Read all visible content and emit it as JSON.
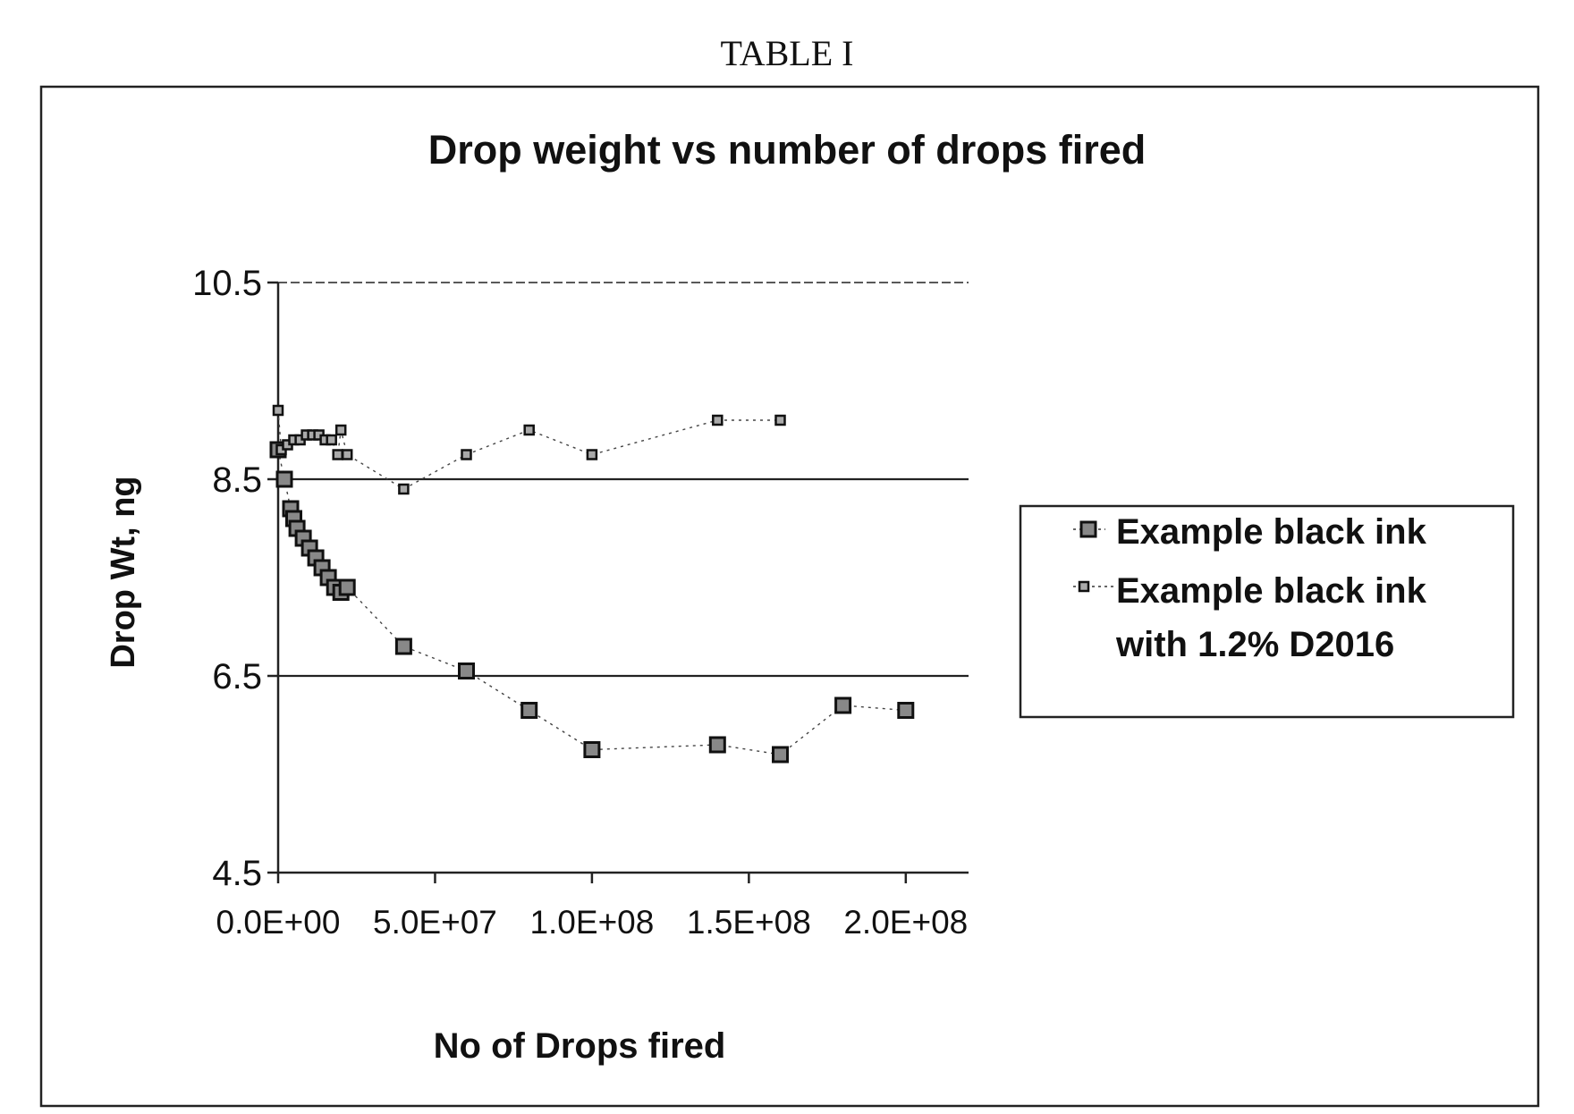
{
  "caption": "TABLE I",
  "chart_data": {
    "type": "scatter",
    "title": "Drop weight vs number of drops fired",
    "xlabel": "No of Drops fired",
    "ylabel": "Drop Wt, ng",
    "xlim": [
      0,
      220000000
    ],
    "ylim": [
      4.5,
      10.5
    ],
    "x_ticks": [
      0,
      50000000,
      100000000,
      150000000,
      200000000
    ],
    "x_tick_labels": [
      "0.0E+00",
      "5.0E+07",
      "1.0E+08",
      "1.5E+08",
      "2.0E+08"
    ],
    "y_ticks": [
      4.5,
      6.5,
      8.5,
      10.5
    ],
    "y_tick_labels": [
      "4.5",
      "6.5",
      "8.5",
      "10.5"
    ],
    "grid": "horizontal",
    "legend_position": "right",
    "series": [
      {
        "name": "Example black ink",
        "marker": "square-large",
        "connected": true,
        "x": [
          0,
          2000000,
          4000000,
          5000000,
          6000000,
          8000000,
          10000000,
          12000000,
          14000000,
          16000000,
          18000000,
          20000000,
          22000000,
          40000000,
          60000000,
          80000000,
          100000000,
          140000000,
          160000000,
          180000000,
          200000000
        ],
        "y": [
          8.8,
          8.5,
          8.2,
          8.1,
          8.0,
          7.9,
          7.8,
          7.7,
          7.6,
          7.5,
          7.4,
          7.35,
          7.4,
          6.8,
          6.55,
          6.15,
          5.75,
          5.8,
          5.7,
          6.2,
          6.15
        ]
      },
      {
        "name": "Example black ink with 1.2% D2016",
        "marker": "square-small",
        "connected": true,
        "x": [
          0,
          1000000,
          3000000,
          5000000,
          7000000,
          9000000,
          11000000,
          13000000,
          15000000,
          17000000,
          19000000,
          20000000,
          22000000,
          40000000,
          60000000,
          80000000,
          100000000,
          140000000,
          160000000
        ],
        "y": [
          9.2,
          8.8,
          8.85,
          8.9,
          8.9,
          8.95,
          8.95,
          8.95,
          8.9,
          8.9,
          8.75,
          9.0,
          8.75,
          8.4,
          8.75,
          9.0,
          8.75,
          9.1,
          9.1
        ]
      }
    ]
  }
}
